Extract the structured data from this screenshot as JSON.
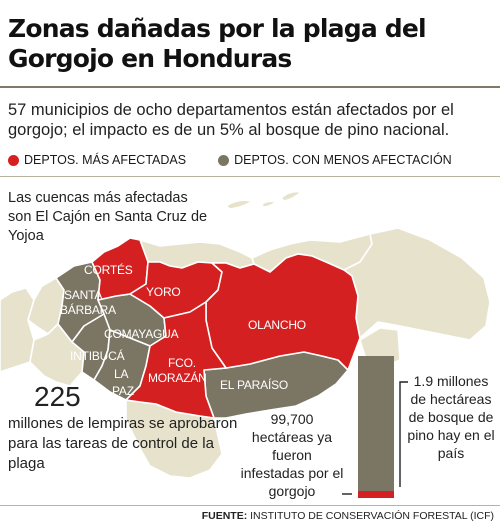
{
  "title": "Zonas dañadas por la plaga del Gorgojo en Honduras",
  "subtitle": "57 municipios de ocho departamentos están afectados por el gorgojo; el impacto es de un 5% al bosque de pino nacional.",
  "legend": {
    "most_affected": "DEPTOS. MÁS AFECTADAS",
    "less_affected": "DEPTOS. CON MENOS AFECTACIÓN"
  },
  "colors": {
    "most_affected": "#d42020",
    "less_affected": "#7b7563",
    "unaffected": "#e6e2cc",
    "water": "#ffffff"
  },
  "watershed_note": "Las cuencas más afectadas son El Cajón en Santa Cruz de Yojoa",
  "departments": {
    "cortes": "CORTÉS",
    "yoro": "YORO",
    "olancho": "OLANCHO",
    "santa_barbara_1": "SANTA",
    "santa_barbara_2": "BÁRBARA",
    "comayagua": "COMAYAGUA",
    "intibuca": "INTIBUCÁ",
    "la_paz_1": "LA",
    "la_paz_2": "PAZ",
    "fco_morazan_1": "FCO.",
    "fco_morazan_2": "MORAZÁN",
    "el_paraiso": "EL PARAÍSO"
  },
  "budget": {
    "amount": "225",
    "text": "millones de lempiras se aprobaron para las tareas de control de la plaga"
  },
  "forest": {
    "total_text": "1.9 millones de hectáreas de bosque de pino hay en el país",
    "infested_text": "99,700 hectáreas ya fueron infestadas por el gorgojo",
    "total_hectares": 1900000,
    "infested_hectares": 99700,
    "affected_percent": 5
  },
  "source": {
    "label": "FUENTE:",
    "text": "INSTITUTO DE CONSERVACIÓN FORESTAL (ICF)"
  }
}
